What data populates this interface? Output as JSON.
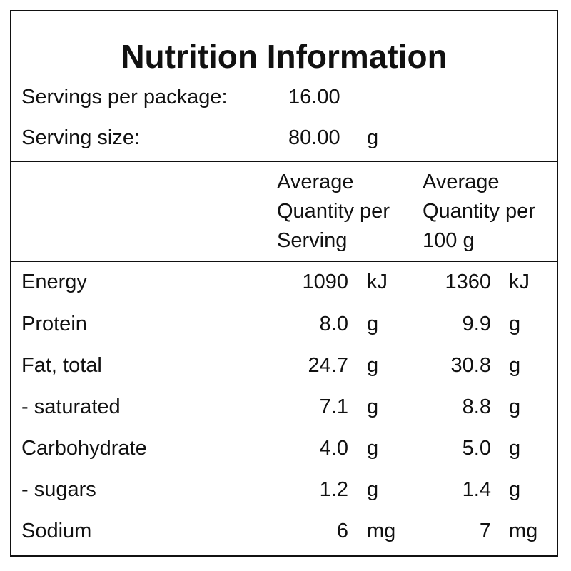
{
  "title": "Nutrition Information",
  "servings": {
    "per_package_label": "Servings per package:",
    "per_package_value": "16.00",
    "size_label": "Serving size:",
    "size_value": "80.00",
    "size_unit": "g"
  },
  "columns": {
    "per_serving": [
      "Average",
      "Quantity per",
      "Serving"
    ],
    "per_100g": [
      "Average",
      "Quantity per",
      "100 g"
    ]
  },
  "rows": [
    {
      "name": "Energy",
      "serving": "1090",
      "serving_unit": "kJ",
      "per100": "1360",
      "per100_unit": "kJ"
    },
    {
      "name": "Protein",
      "serving": "8.0",
      "serving_unit": "g",
      "per100": "9.9",
      "per100_unit": "g"
    },
    {
      "name": "Fat, total",
      "serving": "24.7",
      "serving_unit": "g",
      "per100": "30.8",
      "per100_unit": "g"
    },
    {
      "name": "- saturated",
      "serving": "7.1",
      "serving_unit": "g",
      "per100": "8.8",
      "per100_unit": "g"
    },
    {
      "name": "Carbohydrate",
      "serving": "4.0",
      "serving_unit": "g",
      "per100": "5.0",
      "per100_unit": "g"
    },
    {
      "name": "- sugars",
      "serving": "1.2",
      "serving_unit": "g",
      "per100": "1.4",
      "per100_unit": "g"
    },
    {
      "name": "Sodium",
      "serving": "6",
      "serving_unit": "mg",
      "per100": "7",
      "per100_unit": "mg"
    }
  ]
}
